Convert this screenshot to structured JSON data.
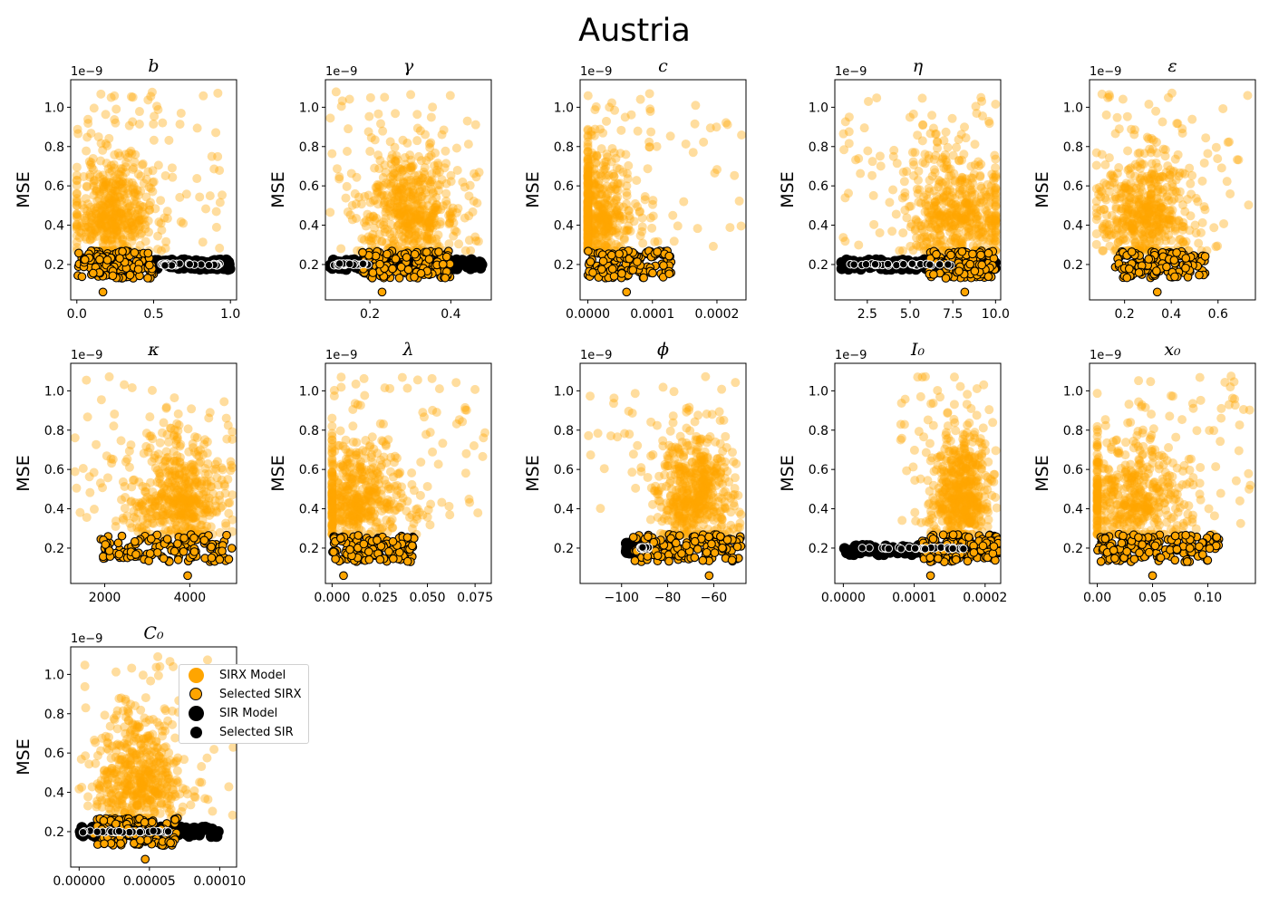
{
  "figure": {
    "title": "Austria",
    "colors": {
      "sirx": "#FFA500",
      "sir": "#000000",
      "selected_sir_edge": "#ffffff"
    }
  },
  "legend": {
    "items": [
      {
        "label": "SIRX Model",
        "marker": "large-orange-dot"
      },
      {
        "label": "Selected SIRX",
        "marker": "orange-dot-black-edge"
      },
      {
        "label": "SIR Model",
        "marker": "large-black-dot"
      },
      {
        "label": "Selected SIR",
        "marker": "black-dot"
      }
    ]
  },
  "chart_data": [
    {
      "type": "scatter",
      "param": "b",
      "title": "b",
      "title_style": "italic",
      "ylabel": "MSE",
      "y_exponent": "1e−9",
      "xlim": [
        -0.04,
        1.04
      ],
      "ylim": [
        0.02,
        1.14
      ],
      "xticks": [
        0.0,
        0.5,
        1.0
      ],
      "xtick_labels": [
        "0.0",
        "0.5",
        "1.0"
      ],
      "yticks": [
        0.2,
        0.4,
        0.6,
        0.8,
        1.0
      ],
      "ytick_labels": [
        "0.2",
        "0.4",
        "0.6",
        "0.8",
        "1.0"
      ],
      "sirx": {
        "center": 0.22,
        "spread": 0.14,
        "range": [
          0.0,
          0.95
        ]
      },
      "sirx_selected": {
        "range": [
          0.0,
          0.5
        ]
      },
      "sir": {
        "range": [
          0.45,
          1.0
        ],
        "y": 0.2
      },
      "sir_selected": {
        "range": [
          0.55,
          0.95
        ],
        "y": 0.2
      },
      "outlier": {
        "x": 0.17,
        "y": 0.06
      }
    },
    {
      "type": "scatter",
      "param": "gamma",
      "title": "γ",
      "title_style": "italic",
      "ylabel": "MSE",
      "y_exponent": "1e−9",
      "xlim": [
        0.09,
        0.5
      ],
      "ylim": [
        0.02,
        1.14
      ],
      "xticks": [
        0.2,
        0.4
      ],
      "xtick_labels": [
        "0.2",
        "0.4"
      ],
      "yticks": [
        0.2,
        0.4,
        0.6,
        0.8,
        1.0
      ],
      "ytick_labels": [
        "0.2",
        "0.4",
        "0.6",
        "0.8",
        "1.0"
      ],
      "sirx": {
        "center": 0.3,
        "spread": 0.06,
        "range": [
          0.1,
          0.47
        ]
      },
      "sirx_selected": {
        "range": [
          0.18,
          0.4
        ]
      },
      "sir": {
        "range": [
          0.1,
          0.48
        ],
        "y": 0.2
      },
      "sir_selected": {
        "range": [
          0.11,
          0.2
        ],
        "y": 0.2
      },
      "outlier": {
        "x": 0.23,
        "y": 0.06
      }
    },
    {
      "type": "scatter",
      "param": "c",
      "title": "c",
      "title_style": "italic",
      "ylabel": "MSE",
      "y_exponent": "1e−9",
      "xlim": [
        -1.2e-05,
        0.000245
      ],
      "ylim": [
        0.02,
        1.14
      ],
      "xticks": [
        0.0,
        0.0001,
        0.0002
      ],
      "xtick_labels": [
        "0.0000",
        "0.0001",
        "0.0002"
      ],
      "yticks": [
        0.2,
        0.4,
        0.6,
        0.8,
        1.0
      ],
      "ytick_labels": [
        "0.2",
        "0.4",
        "0.6",
        "0.8",
        "1.0"
      ],
      "sirx": {
        "center": 1e-05,
        "spread": 3e-05,
        "range": [
          0.0,
          0.00024
        ]
      },
      "sirx_selected": {
        "range": [
          0.0,
          0.00013
        ]
      },
      "sir": null,
      "sir_selected": null,
      "outlier": {
        "x": 6e-05,
        "y": 0.06
      }
    },
    {
      "type": "scatter",
      "param": "eta",
      "title": "η",
      "title_style": "italic",
      "ylabel": "MSE",
      "y_exponent": "1e−9",
      "xlim": [
        0.6,
        10.3
      ],
      "ylim": [
        0.02,
        1.14
      ],
      "xticks": [
        2.5,
        5.0,
        7.5,
        10.0
      ],
      "xtick_labels": [
        "2.5",
        "5.0",
        "7.5",
        "10.0"
      ],
      "yticks": [
        0.2,
        0.4,
        0.6,
        0.8,
        1.0
      ],
      "ytick_labels": [
        "0.2",
        "0.4",
        "0.6",
        "0.8",
        "1.0"
      ],
      "sirx": {
        "center": 7.8,
        "spread": 1.6,
        "range": [
          1.0,
          10.0
        ]
      },
      "sirx_selected": {
        "range": [
          6.0,
          10.0
        ]
      },
      "sir": {
        "range": [
          1.0,
          10.0
        ],
        "y": 0.2
      },
      "sir_selected": {
        "range": [
          1.5,
          7.5
        ],
        "y": 0.2
      },
      "outlier": {
        "x": 8.2,
        "y": 0.06
      }
    },
    {
      "type": "scatter",
      "param": "epsilon",
      "title": "ε",
      "title_style": "italic",
      "ylabel": "MSE",
      "y_exponent": "1e−9",
      "xlim": [
        0.05,
        0.76
      ],
      "ylim": [
        0.02,
        1.14
      ],
      "xticks": [
        0.2,
        0.4,
        0.6
      ],
      "xtick_labels": [
        "0.2",
        "0.4",
        "0.6"
      ],
      "yticks": [
        0.2,
        0.4,
        0.6,
        0.8,
        1.0
      ],
      "ytick_labels": [
        "0.2",
        "0.4",
        "0.6",
        "0.8",
        "1.0"
      ],
      "sirx": {
        "center": 0.28,
        "spread": 0.1,
        "range": [
          0.08,
          0.74
        ]
      },
      "sirx_selected": {
        "range": [
          0.15,
          0.55
        ]
      },
      "sir": null,
      "sir_selected": null,
      "outlier": {
        "x": 0.34,
        "y": 0.06
      }
    },
    {
      "type": "scatter",
      "param": "kappa",
      "title": "κ",
      "title_style": "italic",
      "ylabel": "MSE",
      "y_exponent": "1e−9",
      "xlim": [
        1200,
        5100
      ],
      "ylim": [
        0.02,
        1.14
      ],
      "xticks": [
        2000,
        4000
      ],
      "xtick_labels": [
        "2000",
        "4000"
      ],
      "yticks": [
        0.2,
        0.4,
        0.6,
        0.8,
        1.0
      ],
      "ytick_labels": [
        "0.2",
        "0.4",
        "0.6",
        "0.8",
        "1.0"
      ],
      "sirx": {
        "center": 3800,
        "spread": 550,
        "range": [
          1300,
          5000
        ]
      },
      "sirx_selected": {
        "range": [
          1900,
          5000
        ]
      },
      "sir": null,
      "sir_selected": null,
      "outlier": {
        "x": 3950,
        "y": 0.06
      }
    },
    {
      "type": "scatter",
      "param": "lambda",
      "title": "λ",
      "title_style": "italic",
      "ylabel": "MSE",
      "y_exponent": "1e−9",
      "xlim": [
        -0.0035,
        0.0835
      ],
      "ylim": [
        0.02,
        1.14
      ],
      "xticks": [
        0.0,
        0.025,
        0.05,
        0.075
      ],
      "xtick_labels": [
        "0.000",
        "0.025",
        "0.050",
        "0.075"
      ],
      "yticks": [
        0.2,
        0.4,
        0.6,
        0.8,
        1.0
      ],
      "ytick_labels": [
        "0.2",
        "0.4",
        "0.6",
        "0.8",
        "1.0"
      ],
      "sirx": {
        "center": 0.012,
        "spread": 0.013,
        "range": [
          0.0,
          0.082
        ]
      },
      "sirx_selected": {
        "range": [
          0.0,
          0.043
        ]
      },
      "sir": null,
      "sir_selected": null,
      "outlier": {
        "x": 0.006,
        "y": 0.06
      }
    },
    {
      "type": "scatter",
      "param": "phi",
      "title": "ϕ",
      "title_style": "italic",
      "ylabel": "MSE",
      "y_exponent": "1e−9",
      "xlim": [
        -118,
        -46
      ],
      "ylim": [
        0.02,
        1.14
      ],
      "xticks": [
        -100,
        -80,
        -60
      ],
      "xtick_labels": [
        "−100",
        "−80",
        "−60"
      ],
      "yticks": [
        0.2,
        0.4,
        0.6,
        0.8,
        1.0
      ],
      "ytick_labels": [
        "0.2",
        "0.4",
        "0.6",
        "0.8",
        "1.0"
      ],
      "sirx": {
        "center": -68,
        "spread": 8,
        "range": [
          -115,
          -48
        ]
      },
      "sirx_selected": {
        "range": [
          -95,
          -48
        ]
      },
      "sir": {
        "range": [
          -98,
          -88
        ],
        "y": 0.2
      },
      "sir_selected": {
        "range": [
          -92,
          -88
        ],
        "y": 0.2
      },
      "outlier": {
        "x": -62,
        "y": 0.06
      }
    },
    {
      "type": "scatter",
      "param": "I0",
      "title": "I₀",
      "title_style": "italic",
      "ylabel": "MSE",
      "y_exponent": "1e−9",
      "xlim": [
        -1.2e-05,
        0.000222
      ],
      "ylim": [
        0.02,
        1.14
      ],
      "xticks": [
        0.0,
        0.0001,
        0.0002
      ],
      "xtick_labels": [
        "0.0000",
        "0.0001",
        "0.0002"
      ],
      "yticks": [
        0.2,
        0.4,
        0.6,
        0.8,
        1.0
      ],
      "ytick_labels": [
        "0.2",
        "0.4",
        "0.6",
        "0.8",
        "1.0"
      ],
      "sirx": {
        "center": 0.000165,
        "spread": 2e-05,
        "range": [
          8e-05,
          0.00022
        ]
      },
      "sirx_selected": {
        "range": [
          0.00011,
          0.00022
        ]
      },
      "sir": {
        "range": [
          0.0,
          0.00022
        ],
        "y": 0.19
      },
      "sir_selected": {
        "range": [
          2e-05,
          0.00017
        ],
        "y": 0.2
      },
      "outlier": {
        "x": 0.000123,
        "y": 0.06
      }
    },
    {
      "type": "scatter",
      "param": "x0",
      "title": "x₀",
      "title_style": "italic",
      "ylabel": "MSE",
      "y_exponent": "1e−9",
      "xlim": [
        -0.007,
        0.143
      ],
      "ylim": [
        0.02,
        1.14
      ],
      "xticks": [
        0.0,
        0.05,
        0.1
      ],
      "xtick_labels": [
        "0.00",
        "0.05",
        "0.10"
      ],
      "yticks": [
        0.2,
        0.4,
        0.6,
        0.8,
        1.0
      ],
      "ytick_labels": [
        "0.2",
        "0.4",
        "0.6",
        "0.8",
        "1.0"
      ],
      "sirx": {
        "center": 0.03,
        "spread": 0.03,
        "range": [
          0.0,
          0.14
        ]
      },
      "sirx_selected": {
        "range": [
          0.0,
          0.11
        ]
      },
      "sir": null,
      "sir_selected": null,
      "outlier": {
        "x": 0.05,
        "y": 0.06
      }
    },
    {
      "type": "scatter",
      "param": "C0",
      "title": "C₀",
      "title_style": "italic",
      "ylabel": "MSE",
      "y_exponent": "1e−9",
      "xlim": [
        -6e-06,
        0.000112
      ],
      "ylim": [
        0.02,
        1.14
      ],
      "xticks": [
        0.0,
        5e-05,
        0.0001
      ],
      "xtick_labels": [
        "0.00000",
        "0.00005",
        "0.00010"
      ],
      "yticks": [
        0.2,
        0.4,
        0.6,
        0.8,
        1.0
      ],
      "ytick_labels": [
        "0.2",
        "0.4",
        "0.6",
        "0.8",
        "1.0"
      ],
      "sirx": {
        "center": 4.2e-05,
        "spread": 1.6e-05,
        "range": [
          0.0,
          0.00011
        ]
      },
      "sirx_selected": {
        "range": [
          1e-05,
          7e-05
        ]
      },
      "sir": {
        "range": [
          0.0,
          0.0001
        ],
        "y": 0.2
      },
      "sir_selected": {
        "range": [
          0.0,
          6.5e-05
        ],
        "y": 0.2
      },
      "outlier": {
        "x": 4.7e-05,
        "y": 0.06
      }
    }
  ]
}
